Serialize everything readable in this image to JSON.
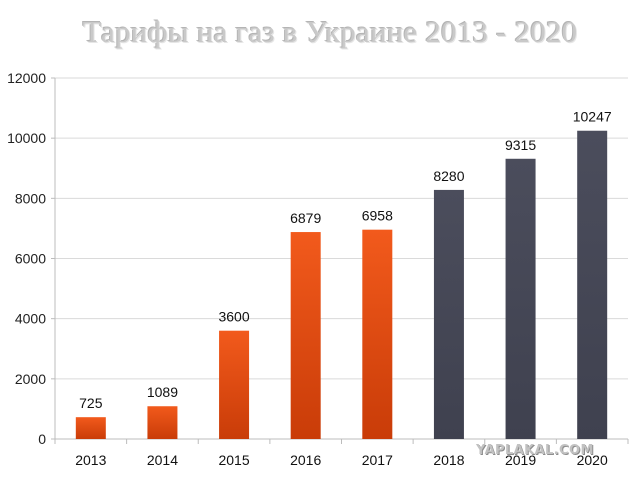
{
  "chart_data": {
    "type": "bar",
    "title": "Тарифы на газ в Украине 2013 - 2020",
    "categories": [
      "2013",
      "2014",
      "2015",
      "2016",
      "2017",
      "2018",
      "2019",
      "2020"
    ],
    "values": [
      725,
      1089,
      3600,
      6879,
      6958,
      8280,
      9315,
      10247
    ],
    "bar_colors": [
      "#e24810",
      "#e24810",
      "#e24810",
      "#e24810",
      "#e24810",
      "#454756",
      "#454756",
      "#454756"
    ],
    "ylim": [
      0,
      12000
    ],
    "yticks": [
      0,
      2000,
      4000,
      6000,
      8000,
      10000,
      12000
    ],
    "xlabel": "",
    "ylabel": "",
    "grid": true,
    "data_labels": true
  },
  "watermark": "YAPLAKAL.COM"
}
